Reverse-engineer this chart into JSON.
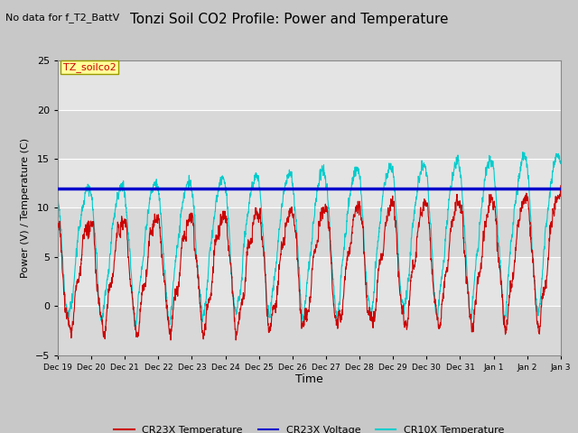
{
  "title": "Tonzi Soil CO2 Profile: Power and Temperature",
  "subtitle": "No data for f_T2_BattV",
  "ylabel": "Power (V) / Temperature (C)",
  "xlabel": "Time",
  "ylim": [
    -5,
    25
  ],
  "yticks": [
    -5,
    0,
    5,
    10,
    15,
    20,
    25
  ],
  "voltage_level": 12.0,
  "annotation_label": "TZ_soilco2",
  "legend_entries": [
    "CR23X Temperature",
    "CR23X Voltage",
    "CR10X Temperature"
  ],
  "cr23x_color": "#cc0000",
  "voltage_color": "#0000cc",
  "cr10x_color": "#00cccc",
  "bg_stripe_light": "#dcdcdc",
  "bg_stripe_dark": "#c8c8c8",
  "fig_bg": "#d0d0d0",
  "xtick_labels": [
    "Dec 19",
    "Dec 20",
    "Dec 21",
    "Dec 22",
    "Dec 23",
    "Dec 24",
    "Dec 25",
    "Dec 26",
    "Dec 27",
    "Dec 28",
    "Dec 29",
    "Dec 30",
    "Dec 31",
    "Jan 1",
    "Jan 2",
    "Jan 3"
  ],
  "n_days": 15,
  "seed": 1234
}
